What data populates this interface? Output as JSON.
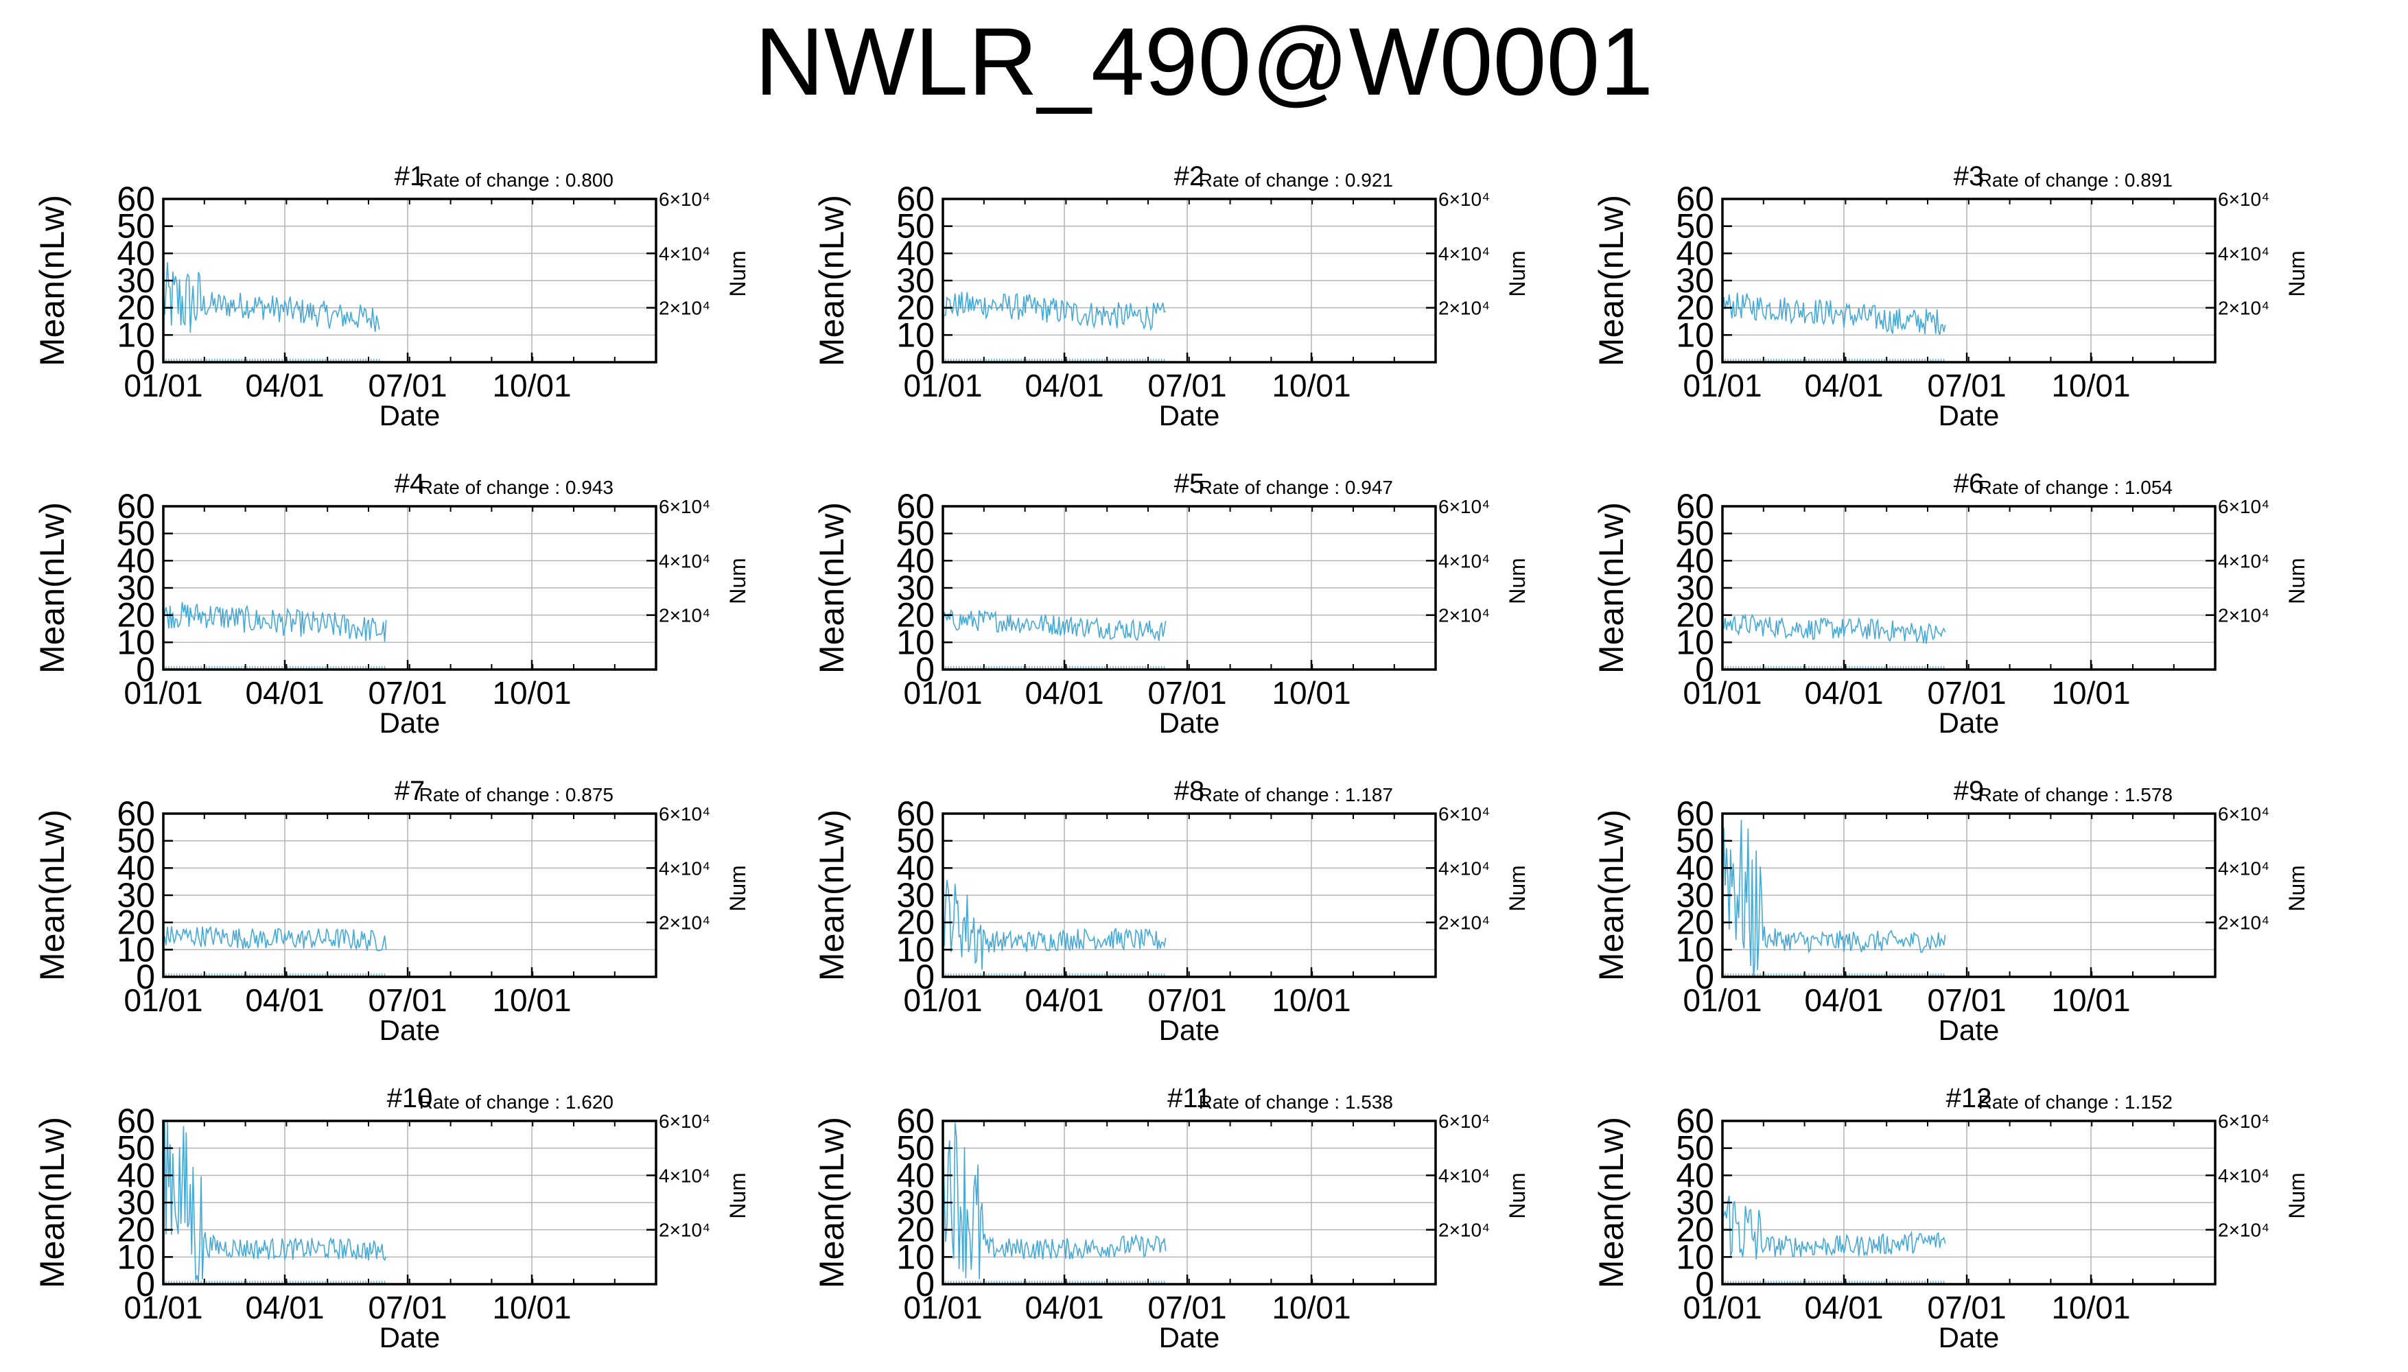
{
  "title": "NWLR_490@W0001",
  "colors": {
    "series": "#45a8d6",
    "grid": "#b4b4b4",
    "axis": "#000000"
  },
  "chart_data": [
    {
      "type": "line",
      "title": "#1",
      "annotation": "Rate of change : 0.800",
      "xlabel": "Date",
      "ylabel": "Mean(nLw)",
      "y2label": "Num",
      "ylim": [
        0,
        60
      ],
      "yticks": [
        0,
        10,
        20,
        30,
        40,
        50,
        60
      ],
      "y2ticks": [
        "2×10⁴",
        "4×10⁴",
        "6×10⁴"
      ],
      "y2tickvalues": [
        20000,
        40000,
        60000
      ],
      "y2lim": [
        0,
        60000
      ],
      "xticks": [
        "01/01",
        "04/01",
        "07/01",
        "10/01"
      ],
      "xtickdays": [
        0,
        90,
        181,
        273
      ],
      "xlim_days": [
        0,
        365
      ],
      "data_end_day": 160,
      "series": [
        {
          "base": [
            23,
            21,
            21,
            19,
            17,
            16
          ],
          "spread": 5
        }
      ],
      "grid": true
    },
    {
      "type": "line",
      "title": "#2",
      "annotation": "Rate of change : 0.921",
      "xlabel": "Date",
      "ylabel": "Mean(nLw)",
      "y2label": "Num",
      "ylim": [
        0,
        60
      ],
      "yticks": [
        0,
        10,
        20,
        30,
        40,
        50,
        60
      ],
      "y2ticks": [
        "2×10⁴",
        "4×10⁴",
        "6×10⁴"
      ],
      "y2tickvalues": [
        20000,
        40000,
        60000
      ],
      "y2lim": [
        0,
        60000
      ],
      "xticks": [
        "01/01",
        "04/01",
        "07/01",
        "10/01"
      ],
      "xtickdays": [
        0,
        90,
        181,
        273
      ],
      "xlim_days": [
        0,
        365
      ],
      "data_end_day": 165,
      "series": [
        {
          "base": [
            21,
            21,
            20,
            18,
            17,
            17
          ],
          "spread": 5
        }
      ],
      "grid": true
    },
    {
      "type": "line",
      "title": "#3",
      "annotation": "Rate of change : 0.891",
      "xlabel": "Date",
      "ylabel": "Mean(nLw)",
      "y2label": "Num",
      "ylim": [
        0,
        60
      ],
      "yticks": [
        0,
        10,
        20,
        30,
        40,
        50,
        60
      ],
      "y2ticks": [
        "2×10⁴",
        "4×10⁴",
        "6×10⁴"
      ],
      "y2tickvalues": [
        20000,
        40000,
        60000
      ],
      "y2lim": [
        0,
        60000
      ],
      "xticks": [
        "01/01",
        "04/01",
        "07/01",
        "10/01"
      ],
      "xtickdays": [
        0,
        90,
        181,
        273
      ],
      "xlim_days": [
        0,
        365
      ],
      "data_end_day": 165,
      "series": [
        {
          "base": [
            21,
            20,
            19,
            17,
            15,
            15
          ],
          "spread": 5
        }
      ],
      "grid": true
    },
    {
      "type": "line",
      "title": "#4",
      "annotation": "Rate of change : 0.943",
      "xlabel": "Date",
      "ylabel": "Mean(nLw)",
      "y2label": "Num",
      "ylim": [
        0,
        60
      ],
      "yticks": [
        0,
        10,
        20,
        30,
        40,
        50,
        60
      ],
      "y2ticks": [
        "2×10⁴",
        "4×10⁴",
        "6×10⁴"
      ],
      "y2tickvalues": [
        20000,
        40000,
        60000
      ],
      "y2lim": [
        0,
        60000
      ],
      "xticks": [
        "01/01",
        "04/01",
        "07/01",
        "10/01"
      ],
      "xtickdays": [
        0,
        90,
        181,
        273
      ],
      "xlim_days": [
        0,
        365
      ],
      "data_end_day": 165,
      "series": [
        {
          "base": [
            20,
            20,
            18,
            17,
            16,
            14
          ],
          "spread": 5
        }
      ],
      "grid": true
    },
    {
      "type": "line",
      "title": "#5",
      "annotation": "Rate of change : 0.947",
      "xlabel": "Date",
      "ylabel": "Mean(nLw)",
      "y2label": "Num",
      "ylim": [
        0,
        60
      ],
      "yticks": [
        0,
        10,
        20,
        30,
        40,
        50,
        60
      ],
      "y2ticks": [
        "2×10⁴",
        "4×10⁴",
        "6×10⁴"
      ],
      "y2tickvalues": [
        20000,
        40000,
        60000
      ],
      "y2lim": [
        0,
        60000
      ],
      "xticks": [
        "01/01",
        "04/01",
        "07/01",
        "10/01"
      ],
      "xtickdays": [
        0,
        90,
        181,
        273
      ],
      "xlim_days": [
        0,
        365
      ],
      "data_end_day": 165,
      "series": [
        {
          "base": [
            18,
            18,
            17,
            16,
            15,
            14
          ],
          "spread": 4
        }
      ],
      "grid": true
    },
    {
      "type": "line",
      "title": "#6",
      "annotation": "Rate of change : 1.054",
      "xlabel": "Date",
      "ylabel": "Mean(nLw)",
      "y2label": "Num",
      "ylim": [
        0,
        60
      ],
      "yticks": [
        0,
        10,
        20,
        30,
        40,
        50,
        60
      ],
      "y2ticks": [
        "2×10⁴",
        "4×10⁴",
        "6×10⁴"
      ],
      "y2tickvalues": [
        20000,
        40000,
        60000
      ],
      "y2lim": [
        0,
        60000
      ],
      "xticks": [
        "01/01",
        "04/01",
        "07/01",
        "10/01"
      ],
      "xtickdays": [
        0,
        90,
        181,
        273
      ],
      "xlim_days": [
        0,
        365
      ],
      "data_end_day": 165,
      "series": [
        {
          "base": [
            17,
            16,
            15,
            15,
            14,
            13
          ],
          "spread": 4
        }
      ],
      "grid": true
    },
    {
      "type": "line",
      "title": "#7",
      "annotation": "Rate of change : 0.875",
      "xlabel": "Date",
      "ylabel": "Mean(nLw)",
      "y2label": "Num",
      "ylim": [
        0,
        60
      ],
      "yticks": [
        0,
        10,
        20,
        30,
        40,
        50,
        60
      ],
      "y2ticks": [
        "2×10⁴",
        "4×10⁴",
        "6×10⁴"
      ],
      "y2tickvalues": [
        20000,
        40000,
        60000
      ],
      "y2lim": [
        0,
        60000
      ],
      "xticks": [
        "01/01",
        "04/01",
        "07/01",
        "10/01"
      ],
      "xtickdays": [
        0,
        90,
        181,
        273
      ],
      "xlim_days": [
        0,
        365
      ],
      "data_end_day": 165,
      "series": [
        {
          "base": [
            15,
            15,
            14,
            14,
            14,
            13
          ],
          "spread": 4
        }
      ],
      "grid": true
    },
    {
      "type": "line",
      "title": "#8",
      "annotation": "Rate of change : 1.187",
      "xlabel": "Date",
      "ylabel": "Mean(nLw)",
      "y2label": "Num",
      "ylim": [
        0,
        60
      ],
      "yticks": [
        0,
        10,
        20,
        30,
        40,
        50,
        60
      ],
      "y2ticks": [
        "2×10⁴",
        "4×10⁴",
        "6×10⁴"
      ],
      "y2tickvalues": [
        20000,
        40000,
        60000
      ],
      "y2lim": [
        0,
        60000
      ],
      "xticks": [
        "01/01",
        "04/01",
        "07/01",
        "10/01"
      ],
      "xtickdays": [
        0,
        90,
        181,
        273
      ],
      "xlim_days": [
        0,
        365
      ],
      "data_end_day": 165,
      "series": [
        {
          "base": [
            25,
            13,
            13,
            14,
            14,
            13
          ],
          "spread": 4
        }
      ],
      "grid": true
    },
    {
      "type": "line",
      "title": "#9",
      "annotation": "Rate of change : 1.578",
      "xlabel": "Date",
      "ylabel": "Mean(nLw)",
      "y2label": "Num",
      "ylim": [
        0,
        60
      ],
      "yticks": [
        0,
        10,
        20,
        30,
        40,
        50,
        60
      ],
      "y2ticks": [
        "2×10⁴",
        "4×10⁴",
        "6×10⁴"
      ],
      "y2tickvalues": [
        20000,
        40000,
        60000
      ],
      "y2lim": [
        0,
        60000
      ],
      "xticks": [
        "01/01",
        "04/01",
        "07/01",
        "10/01"
      ],
      "xtickdays": [
        0,
        90,
        181,
        273
      ],
      "xlim_days": [
        0,
        365
      ],
      "data_end_day": 165,
      "series": [
        {
          "base": [
            45,
            14,
            13,
            13,
            13,
            13
          ],
          "spread": 4
        }
      ],
      "grid": true
    },
    {
      "type": "line",
      "title": "#10",
      "annotation": "Rate of change : 1.620",
      "xlabel": "Date",
      "ylabel": "Mean(nLw)",
      "y2label": "Num",
      "ylim": [
        0,
        60
      ],
      "yticks": [
        0,
        10,
        20,
        30,
        40,
        50,
        60
      ],
      "y2ticks": [
        "2×10⁴",
        "4×10⁴",
        "6×10⁴"
      ],
      "y2tickvalues": [
        20000,
        40000,
        60000
      ],
      "y2lim": [
        0,
        60000
      ],
      "xticks": [
        "01/01",
        "04/01",
        "07/01",
        "10/01"
      ],
      "xtickdays": [
        0,
        90,
        181,
        273
      ],
      "xlim_days": [
        0,
        365
      ],
      "data_end_day": 165,
      "series": [
        {
          "base": [
            48,
            14,
            13,
            13,
            13,
            12
          ],
          "spread": 4
        }
      ],
      "grid": true
    },
    {
      "type": "line",
      "title": "#11",
      "annotation": "Rate of change : 1.538",
      "xlabel": "Date",
      "ylabel": "Mean(nLw)",
      "y2label": "Num",
      "ylim": [
        0,
        60
      ],
      "yticks": [
        0,
        10,
        20,
        30,
        40,
        50,
        60
      ],
      "y2ticks": [
        "2×10⁴",
        "4×10⁴",
        "6×10⁴"
      ],
      "y2tickvalues": [
        20000,
        40000,
        60000
      ],
      "y2lim": [
        0,
        60000
      ],
      "xticks": [
        "01/01",
        "04/01",
        "07/01",
        "10/01"
      ],
      "xtickdays": [
        0,
        90,
        181,
        273
      ],
      "xlim_days": [
        0,
        365
      ],
      "data_end_day": 165,
      "series": [
        {
          "base": [
            45,
            13,
            13,
            13,
            14,
            14
          ],
          "spread": 4
        }
      ],
      "grid": true
    },
    {
      "type": "line",
      "title": "#12",
      "annotation": "Rate of change : 1.152",
      "xlabel": "Date",
      "ylabel": "Mean(nLw)",
      "y2label": "Num",
      "ylim": [
        0,
        60
      ],
      "yticks": [
        0,
        10,
        20,
        30,
        40,
        50,
        60
      ],
      "y2ticks": [
        "2×10⁴",
        "4×10⁴",
        "6×10⁴"
      ],
      "y2tickvalues": [
        20000,
        40000,
        60000
      ],
      "y2lim": [
        0,
        60000
      ],
      "xticks": [
        "01/01",
        "04/01",
        "07/01",
        "10/01"
      ],
      "xtickdays": [
        0,
        90,
        181,
        273
      ],
      "xlim_days": [
        0,
        365
      ],
      "data_end_day": 165,
      "series": [
        {
          "base": [
            25,
            14,
            14,
            14,
            15,
            16
          ],
          "spread": 4
        }
      ],
      "grid": true
    }
  ]
}
